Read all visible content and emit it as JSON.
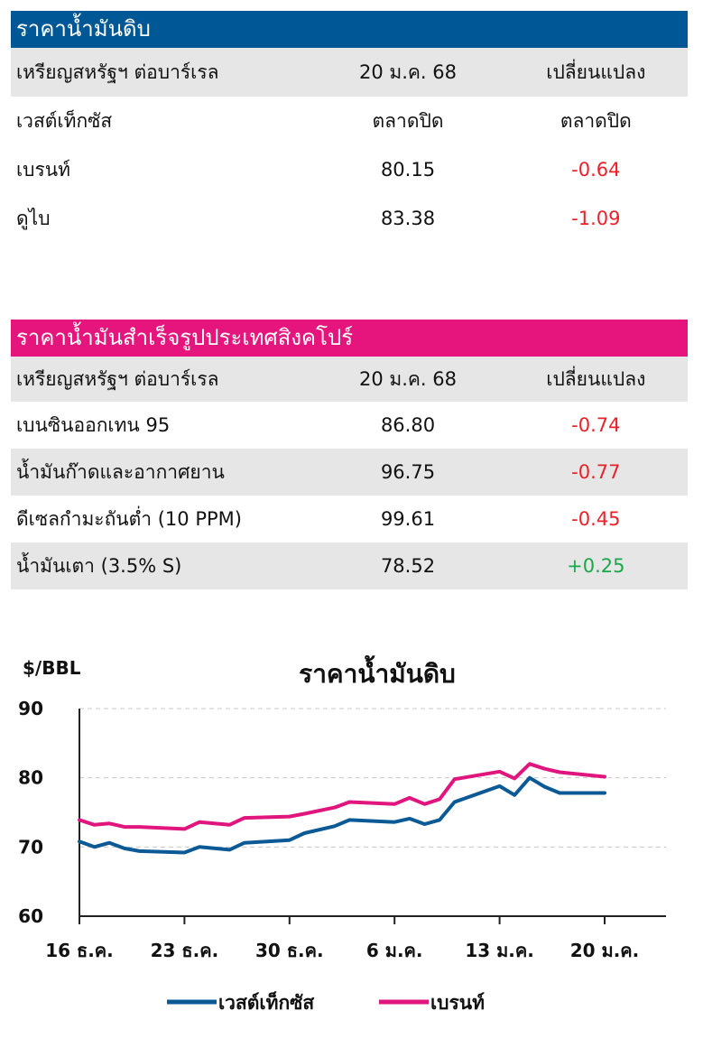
{
  "crude": {
    "title": "ราคาน้ำมันดิบ",
    "title_bg": "#005796",
    "header": {
      "label": "เหรียญสหรัฐฯ ต่อบาร์เรล",
      "date": "20 ม.ค. 68",
      "change": "เปลี่ยนแปลง"
    },
    "subheader": {
      "label": "เวสต์เท็กซัส",
      "date": "ตลาดปิด",
      "change": "ตลาดปิด"
    },
    "rows": [
      {
        "label": "เบรนท์",
        "price": "80.15",
        "change": "-0.64"
      },
      {
        "label": "ดูไบ",
        "price": "83.38",
        "change": "-1.09"
      }
    ]
  },
  "refined": {
    "title": "ราคาน้ำมันสำเร็จรูปประเทศสิงคโปร์",
    "title_bg": "#e5157d",
    "header": {
      "label": "เหรียญสหรัฐฯ ต่อบาร์เรล",
      "date": "20 ม.ค. 68",
      "change": "เปลี่ยนแปลง"
    },
    "rows": [
      {
        "label": "เบนซินออกเทน 95",
        "price": "86.80",
        "change": "-0.74"
      },
      {
        "label": "น้ำมันก๊าดและอากาศยาน",
        "price": "96.75",
        "change": "-0.77"
      },
      {
        "label": "ดีเซลกำมะถันต่ำ (10 PPM)",
        "price": "99.61",
        "change": "-0.45"
      },
      {
        "label": "น้ำมันเตา (3.5% S)",
        "price": "78.52",
        "change": "+0.25"
      }
    ]
  },
  "chart_data": {
    "type": "line",
    "title": "ราคาน้ำมันดิบ",
    "ylabel": "$/BBL",
    "ylim": [
      60,
      90
    ],
    "yticks": [
      60,
      70,
      80,
      90
    ],
    "x": [
      "16 ธ.ค.",
      "17 ธ.ค.",
      "18 ธ.ค.",
      "19 ธ.ค.",
      "20 ธ.ค.",
      "23 ธ.ค.",
      "24 ธ.ค.",
      "26 ธ.ค.",
      "27 ธ.ค.",
      "30 ธ.ค.",
      "31 ธ.ค.",
      "2 ม.ค.",
      "3 ม.ค.",
      "6 ม.ค.",
      "7 ม.ค.",
      "8 ม.ค.",
      "9 ม.ค.",
      "10 ม.ค.",
      "13 ม.ค.",
      "14 ม.ค.",
      "15 ม.ค.",
      "16 ม.ค.",
      "17 ม.ค.",
      "20 ม.ค."
    ],
    "x_ticks": [
      "16 ธ.ค.",
      "23 ธ.ค.",
      "30 ธ.ค.",
      "6 ม.ค.",
      "13 ม.ค.",
      "20 ม.ค."
    ],
    "x_tick_index": [
      0,
      7,
      14,
      21,
      28,
      35
    ],
    "x_index": [
      0,
      1,
      2,
      3,
      4,
      7,
      8,
      10,
      11,
      14,
      15,
      17,
      18,
      21,
      22,
      23,
      24,
      25,
      28,
      29,
      30,
      31,
      32,
      35
    ],
    "x_max_index": 39,
    "grid": true,
    "legend_position": "bottom",
    "series": [
      {
        "name": "เวสต์เท็กซัส",
        "color": "#0b5a96",
        "values": [
          70.8,
          70.0,
          70.6,
          69.8,
          69.4,
          69.2,
          70.0,
          69.6,
          70.6,
          71.0,
          72.0,
          73.0,
          73.9,
          73.6,
          74.1,
          73.3,
          73.9,
          76.5,
          78.8,
          77.5,
          80.0,
          78.7,
          77.8,
          77.8
        ]
      },
      {
        "name": "เบรนท์",
        "color": "#e0157d",
        "values": [
          73.9,
          73.2,
          73.4,
          72.9,
          72.9,
          72.6,
          73.6,
          73.2,
          74.2,
          74.4,
          74.8,
          75.7,
          76.5,
          76.2,
          77.1,
          76.2,
          76.9,
          79.8,
          80.9,
          79.9,
          82.0,
          81.3,
          80.8,
          80.15
        ]
      }
    ]
  }
}
